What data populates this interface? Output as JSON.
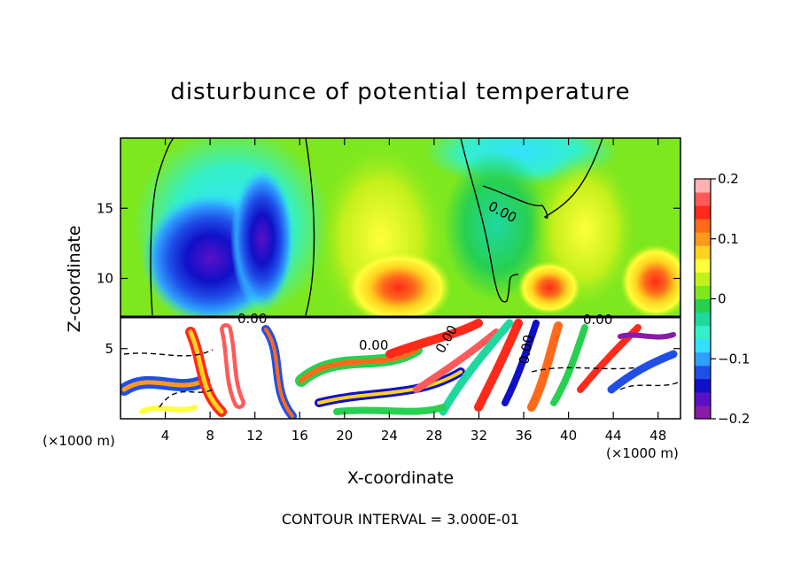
{
  "chart_data": {
    "type": "heatmap",
    "title": "disturbunce of potential temperature",
    "xlabel": "X-coordinate",
    "ylabel": "Z-coordinate",
    "x_unit_left": "(×1000 m)",
    "x_unit_right": "(×1000 m)",
    "x_ticks": [
      4,
      8,
      12,
      16,
      20,
      24,
      28,
      32,
      36,
      40,
      44,
      48
    ],
    "y_ticks": [
      5,
      10,
      15
    ],
    "xlim": [
      0,
      50
    ],
    "ylim": [
      0,
      20
    ],
    "colorbar": {
      "range": [
        -0.2,
        0.2
      ],
      "tick_labels": [
        "0.2",
        "0.1",
        "0",
        "−0.1",
        "−0.2"
      ],
      "tick_values": [
        0.2,
        0.1,
        0,
        -0.1,
        -0.2
      ],
      "colors": [
        "#8a1aa8",
        "#5a10c8",
        "#1010c8",
        "#1f4fe8",
        "#2fa0ff",
        "#33e0ff",
        "#33f0c8",
        "#1fd8a0",
        "#27d050",
        "#7ee81f",
        "#c4f01a",
        "#ffff3a",
        "#ffd21f",
        "#ff9a1a",
        "#ff6a1a",
        "#ff2a1a",
        "#ff5a5a",
        "#ffb0b0"
      ]
    },
    "contour_labels": [
      "0.00",
      "0.00",
      "0.00",
      "0.00",
      "0.00",
      "0.00"
    ],
    "footer": "CONTOUR INTERVAL = 3.000E-01"
  }
}
